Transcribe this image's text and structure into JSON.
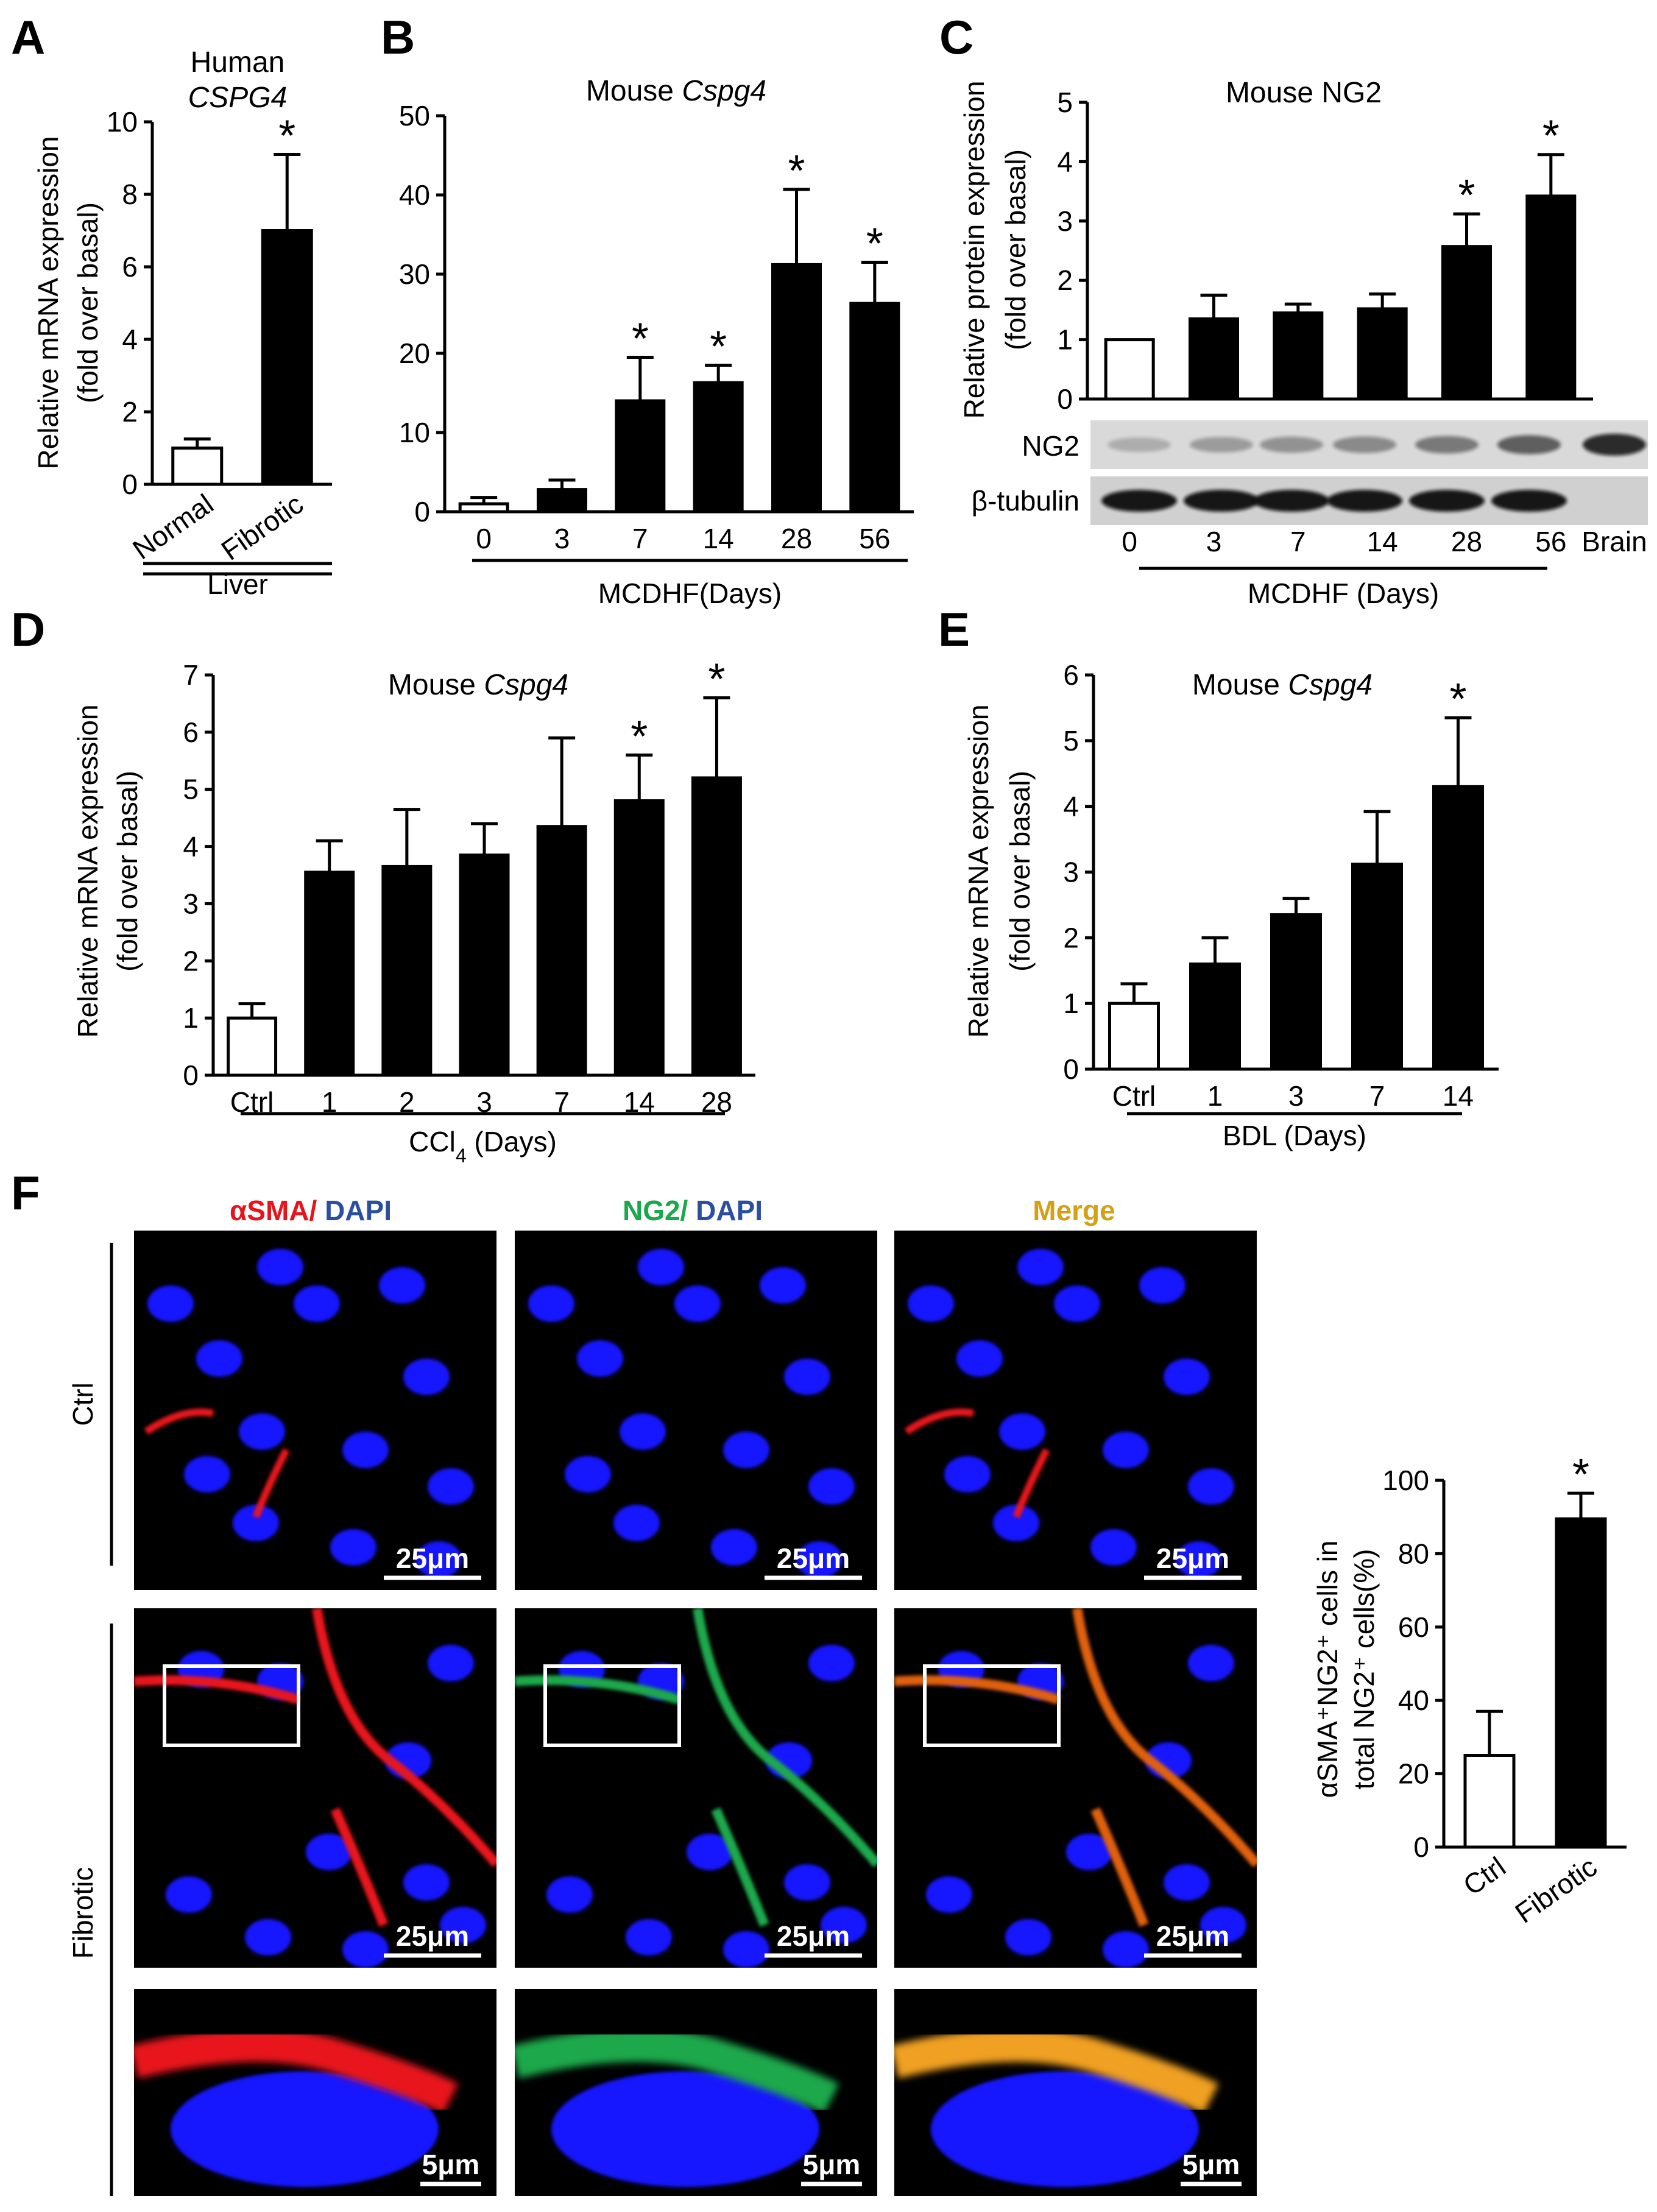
{
  "panel_letters": {
    "a": "A",
    "b": "B",
    "c": "C",
    "d": "D",
    "e": "E",
    "f": "F"
  },
  "chart_data": [
    {
      "id": "A",
      "type": "bar",
      "title": "Human",
      "title_italic": "CSPG4",
      "ylabel": "Relative mRNA expression",
      "ylabel2": "(fold over basal)",
      "xlabel": "Liver",
      "categories": [
        "Normal",
        "Fibrotic"
      ],
      "values": [
        1.0,
        7.0
      ],
      "errors": [
        0.25,
        2.1
      ],
      "significant": [
        false,
        true
      ],
      "fill": [
        "#ffffff",
        "#000000"
      ],
      "ylim": [
        0,
        10
      ],
      "yticks": [
        "0",
        "2",
        "4",
        "6",
        "8",
        "10"
      ]
    },
    {
      "id": "B",
      "type": "bar",
      "title": "Mouse",
      "title_italic": "Cspg4",
      "ylabel": "",
      "ylabel2": "",
      "xlabel": "MCDHF(Days)",
      "categories": [
        "0",
        "3",
        "7",
        "14",
        "28",
        "56"
      ],
      "values": [
        1.0,
        2.8,
        14.0,
        16.3,
        31.2,
        26.3
      ],
      "errors": [
        0.8,
        1.2,
        5.5,
        2.2,
        9.5,
        5.2
      ],
      "significant": [
        false,
        false,
        true,
        true,
        true,
        true
      ],
      "fill": [
        "#ffffff",
        "#000000",
        "#000000",
        "#000000",
        "#000000",
        "#000000"
      ],
      "ylim": [
        0,
        50
      ],
      "yticks": [
        "0",
        "10",
        "20",
        "30",
        "40",
        "50"
      ]
    },
    {
      "id": "C",
      "type": "bar",
      "title": "Mouse NG2",
      "title_italic": "",
      "ylabel": "Relative protein expression",
      "ylabel2": "(fold over basal)",
      "xlabel": "MCDHF (Days)",
      "categories": [
        "0",
        "3",
        "7",
        "14",
        "28",
        "56"
      ],
      "extra_lane": "Brain",
      "values": [
        1.0,
        1.35,
        1.45,
        1.52,
        2.57,
        3.42
      ],
      "errors": [
        0.0,
        0.4,
        0.15,
        0.25,
        0.55,
        0.7
      ],
      "significant": [
        false,
        false,
        false,
        false,
        true,
        true
      ],
      "fill": [
        "#ffffff",
        "#000000",
        "#000000",
        "#000000",
        "#000000",
        "#000000"
      ],
      "ylim": [
        0,
        5
      ],
      "yticks": [
        "0",
        "1",
        "2",
        "3",
        "4",
        "5"
      ],
      "blot_rows": [
        "NG2",
        "β-tubulin"
      ]
    },
    {
      "id": "D",
      "type": "bar",
      "title": "Mouse",
      "title_italic": "Cspg4",
      "ylabel": "Relative mRNA expression",
      "ylabel2": "(fold over basal)",
      "xlabel": "CCl",
      "xlabel_sub": "4",
      "xlabel_tail": " (Days)",
      "categories": [
        "Ctrl",
        "1",
        "2",
        "3",
        "7",
        "14",
        "28"
      ],
      "values": [
        1.0,
        3.55,
        3.65,
        3.85,
        4.35,
        4.8,
        5.2
      ],
      "errors": [
        0.25,
        0.55,
        1.0,
        0.55,
        1.55,
        0.8,
        1.4
      ],
      "significant": [
        false,
        false,
        false,
        false,
        false,
        true,
        true
      ],
      "fill": [
        "#ffffff",
        "#000000",
        "#000000",
        "#000000",
        "#000000",
        "#000000",
        "#000000"
      ],
      "ylim": [
        0,
        7
      ],
      "yticks": [
        "0",
        "1",
        "2",
        "3",
        "4",
        "5",
        "6",
        "7"
      ]
    },
    {
      "id": "E",
      "type": "bar",
      "title": "Mouse",
      "title_italic": "Cspg4",
      "ylabel": "Relative mRNA expression",
      "ylabel2": "(fold over basal)",
      "xlabel": "BDL (Days)",
      "categories": [
        "Ctrl",
        "1",
        "3",
        "7",
        "14"
      ],
      "values": [
        1.0,
        1.6,
        2.35,
        3.12,
        4.3
      ],
      "errors": [
        0.3,
        0.4,
        0.25,
        0.8,
        1.05
      ],
      "significant": [
        false,
        false,
        false,
        false,
        true
      ],
      "fill": [
        "#ffffff",
        "#000000",
        "#000000",
        "#000000",
        "#000000"
      ],
      "ylim": [
        0,
        6
      ],
      "yticks": [
        "0",
        "1",
        "2",
        "3",
        "4",
        "5",
        "6"
      ]
    },
    {
      "id": "F-quant",
      "type": "bar",
      "title": "",
      "title_italic": "",
      "ylabel": "αSMA⁺NG2⁺ cells in",
      "ylabel2": "total NG2⁺ cells(%)",
      "xlabel": "",
      "categories": [
        "Ctrl",
        "Fibrotic"
      ],
      "values": [
        25.0,
        89.5
      ],
      "errors": [
        12.0,
        7.0
      ],
      "significant": [
        false,
        true
      ],
      "fill": [
        "#ffffff",
        "#000000"
      ],
      "ylim": [
        0,
        100
      ],
      "yticks": [
        "0",
        "20",
        "40",
        "60",
        "80",
        "100"
      ]
    }
  ],
  "significance_marker": "*",
  "micrographs": {
    "col_titles": {
      "sma": "αSMA/",
      "dapi1": " DAPI",
      "ng2": "NG2/",
      "dapi2": " DAPI",
      "merge": "Merge"
    },
    "row_labels": {
      "ctrl": "Ctrl",
      "fibrotic": "Fibrotic"
    },
    "scale_bars": {
      "big": "25μm",
      "zoom": "5μm"
    },
    "colors": {
      "sma": "#e8141c",
      "dapi": "#2a4fa0",
      "ng2": "#1aa84b",
      "merge": "#d4a017",
      "nuclei": "#1414ff"
    }
  }
}
